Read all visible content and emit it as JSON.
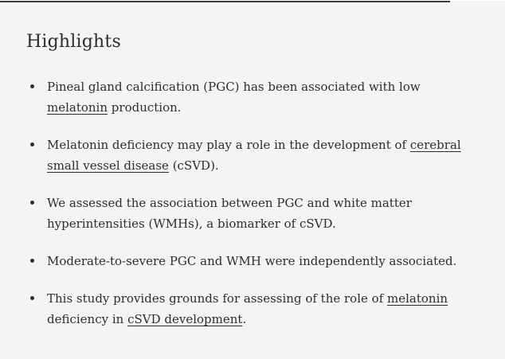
{
  "page": {
    "background_color": "#f4f4f4",
    "text_color": "#2d2d2d",
    "rule_color": "#3a3a3a"
  },
  "highlights": {
    "heading": "Highlights",
    "items": [
      {
        "lines": [
          [
            {
              "text": "Pineal gland calcification (PGC) has been associated with low"
            }
          ],
          [
            {
              "text": "melatonin",
              "link": true
            },
            {
              "text": " production."
            }
          ]
        ]
      },
      {
        "lines": [
          [
            {
              "text": "Melatonin deficiency may play a role in the development of "
            },
            {
              "text": "cerebral",
              "link": true
            }
          ],
          [
            {
              "text": "small vessel disease",
              "link": true
            },
            {
              "text": " (cSVD)."
            }
          ]
        ]
      },
      {
        "lines": [
          [
            {
              "text": "We assessed the association between PGC and white matter"
            }
          ],
          [
            {
              "text": "hyperintensities (WMHs), a biomarker of cSVD."
            }
          ]
        ]
      },
      {
        "lines": [
          [
            {
              "text": "Moderate-to-severe PGC and WMH were independently associated."
            }
          ]
        ]
      },
      {
        "lines": [
          [
            {
              "text": "This study provides grounds for assessing of the role of "
            },
            {
              "text": "melatonin",
              "link": true
            }
          ],
          [
            {
              "text": "deficiency in "
            },
            {
              "text": "cSVD development",
              "link": true
            },
            {
              "text": "."
            }
          ]
        ]
      }
    ]
  }
}
